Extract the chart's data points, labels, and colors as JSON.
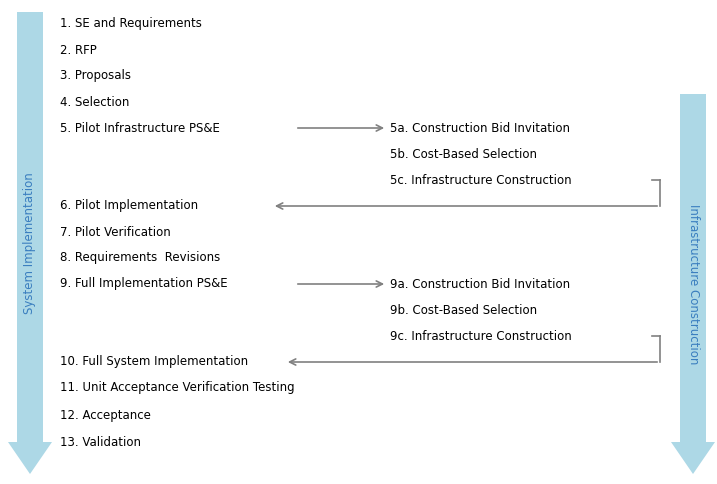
{
  "left_items": [
    "1. SE and Requirements",
    "2. RFP",
    "3. Proposals",
    "4. Selection",
    "5. Pilot Infrastructure PS&E",
    "6. Pilot Implementation",
    "7. Pilot Verification",
    "8. Requirements  Revisions",
    "9. Full Implementation PS&E",
    "10. Full System Implementation",
    "11. Unit Acceptance Verification Testing",
    "12. Acceptance",
    "13. Validation"
  ],
  "right_items_first": [
    "5a. Construction Bid Invitation",
    "5b. Cost-Based Selection",
    "5c. Infrastructure Construction"
  ],
  "right_items_second": [
    "9a. Construction Bid Invitation",
    "9b. Cost-Based Selection",
    "9c. Infrastructure Construction"
  ],
  "left_arrow_label": "System Implementation",
  "right_arrow_label": "Infrastructure Construction",
  "arrow_color": "#add8e6",
  "text_color": "#000000",
  "line_color": "#808080",
  "bg_color": "#ffffff",
  "font_size": 8.5,
  "label_font_size": 8.5
}
